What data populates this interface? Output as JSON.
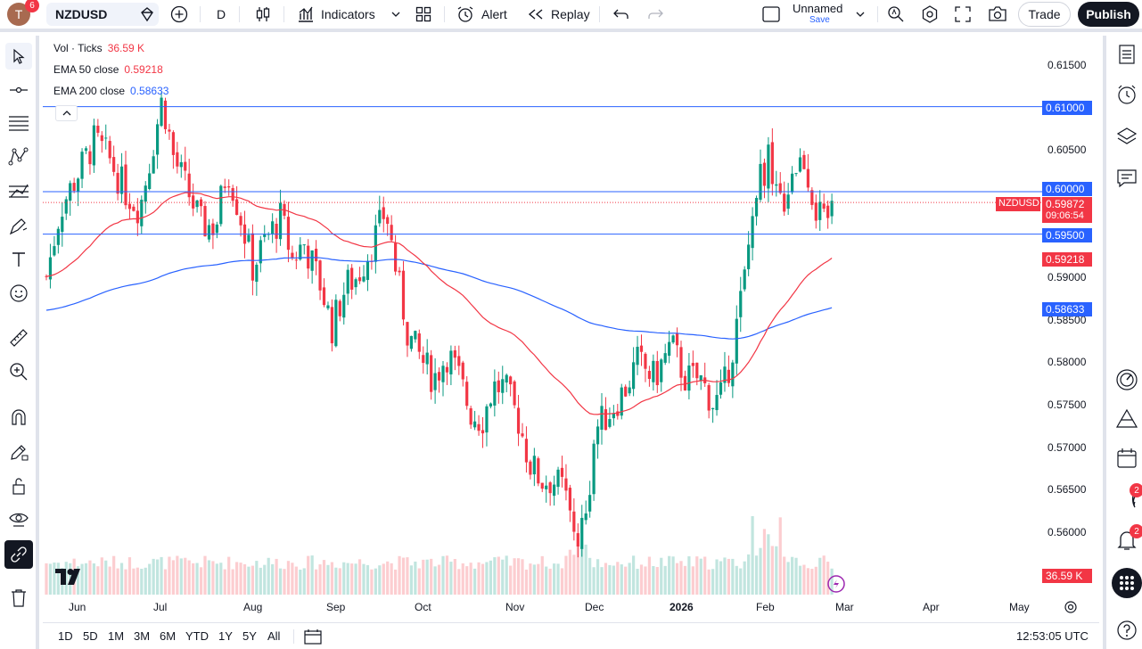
{
  "topbar": {
    "avatar_letter": "T",
    "notification_count": "6",
    "symbol": "NZDUSD",
    "interval": "D",
    "indicators_label": "Indicators",
    "alert_label": "Alert",
    "replay_label": "Replay",
    "layout_name": "Unnamed",
    "layout_save": "Save",
    "trade_label": "Trade",
    "publish_label": "Publish"
  },
  "legend": {
    "volume_label": "Vol · Ticks",
    "volume_value": "36.59 K",
    "ema50_label": "EMA 50 close",
    "ema50_value": "0.59218",
    "ema200_label": "EMA 200 close",
    "ema200_value": "0.58633"
  },
  "price_axis": [
    "0.61500",
    "0.60500",
    "0.59000",
    "0.58500",
    "0.58000",
    "0.57500",
    "0.57000",
    "0.56500",
    "0.56000"
  ],
  "price_labels": {
    "h1": "0.61000",
    "h2": "0.60000",
    "symbol": "NZDUSD",
    "last": "0.59872",
    "countdown": "09:06:54",
    "h3": "0.59500",
    "ema50": "0.59218",
    "ema200": "0.58633",
    "volume": "36.59 K"
  },
  "time_axis": [
    "Jun",
    "Jul",
    "Aug",
    "Sep",
    "Oct",
    "Nov",
    "Dec",
    "2026",
    "Feb",
    "Mar",
    "Apr",
    "May"
  ],
  "bottombar": {
    "ranges": [
      "1D",
      "5D",
      "1M",
      "3M",
      "6M",
      "YTD",
      "1Y",
      "5Y",
      "All"
    ],
    "clock": "12:53:05 UTC"
  },
  "rightbar": {
    "ideas_badge": "2",
    "alerts_badge": "2"
  },
  "colors": {
    "up": "#089981",
    "down": "#f23645",
    "ema50": "#f23645",
    "ema200": "#2962ff",
    "hline": "#2962ff"
  },
  "chart_data": {
    "type": "candlestick",
    "symbol": "NZDUSD",
    "ylim": [
      0.555,
      0.617
    ],
    "horizontal_lines": [
      0.61,
      0.6,
      0.595
    ],
    "last_price": 0.59872,
    "close_path": [
      [
        "2025-05-21",
        0.59
      ],
      [
        "2025-05-26",
        0.598
      ],
      [
        "2025-06-01",
        0.602
      ],
      [
        "2025-06-07",
        0.606
      ],
      [
        "2025-06-12",
        0.604
      ],
      [
        "2025-06-18",
        0.6
      ],
      [
        "2025-06-23",
        0.598
      ],
      [
        "2025-06-28",
        0.606
      ],
      [
        "2025-07-01",
        0.611
      ],
      [
        "2025-07-05",
        0.604
      ],
      [
        "2025-07-10",
        0.6
      ],
      [
        "2025-07-15",
        0.596
      ],
      [
        "2025-07-20",
        0.596
      ],
      [
        "2025-07-24",
        0.603
      ],
      [
        "2025-07-28",
        0.598
      ],
      [
        "2025-08-02",
        0.591
      ],
      [
        "2025-08-06",
        0.594
      ],
      [
        "2025-08-12",
        0.597
      ],
      [
        "2025-08-16",
        0.592
      ],
      [
        "2025-08-20",
        0.594
      ],
      [
        "2025-08-26",
        0.589
      ],
      [
        "2025-08-30",
        0.584
      ],
      [
        "2025-09-04",
        0.589
      ],
      [
        "2025-09-08",
        0.59
      ],
      [
        "2025-09-12",
        0.593
      ],
      [
        "2025-09-16",
        0.596
      ],
      [
        "2025-09-18",
        0.598
      ],
      [
        "2025-09-22",
        0.59
      ],
      [
        "2025-09-26",
        0.583
      ],
      [
        "2025-10-01",
        0.58
      ],
      [
        "2025-10-05",
        0.578
      ],
      [
        "2025-10-10",
        0.581
      ],
      [
        "2025-10-14",
        0.578
      ],
      [
        "2025-10-18",
        0.574
      ],
      [
        "2025-10-22",
        0.573
      ],
      [
        "2025-10-26",
        0.577
      ],
      [
        "2025-10-30",
        0.577
      ],
      [
        "2025-11-04",
        0.573
      ],
      [
        "2025-11-08",
        0.568
      ],
      [
        "2025-11-12",
        0.566
      ],
      [
        "2025-11-16",
        0.566
      ],
      [
        "2025-11-20",
        0.565
      ],
      [
        "2025-11-24",
        0.559
      ],
      [
        "2025-11-28",
        0.562
      ],
      [
        "2025-12-01",
        0.572
      ],
      [
        "2025-12-06",
        0.574
      ],
      [
        "2025-12-12",
        0.577
      ],
      [
        "2025-12-16",
        0.58
      ],
      [
        "2025-12-22",
        0.578
      ],
      [
        "2025-12-28",
        0.582
      ],
      [
        "2026-01-02",
        0.578
      ],
      [
        "2026-01-07",
        0.578
      ],
      [
        "2026-01-12",
        0.575
      ],
      [
        "2026-01-15",
        0.576
      ],
      [
        "2026-01-19",
        0.582
      ],
      [
        "2026-01-23",
        0.59
      ],
      [
        "2026-01-27",
        0.601
      ],
      [
        "2026-02-01",
        0.604
      ],
      [
        "2026-02-05",
        0.598
      ],
      [
        "2026-02-09",
        0.603
      ],
      [
        "2026-02-13",
        0.604
      ],
      [
        "2026-02-17",
        0.598
      ],
      [
        "2026-02-20",
        0.596
      ],
      [
        "2026-02-24",
        0.599
      ]
    ],
    "series": [
      {
        "name": "EMA 50 close",
        "last": 0.59218
      },
      {
        "name": "EMA 200 close",
        "last": 0.58633
      },
      {
        "name": "Vol · Ticks",
        "last": 36590
      }
    ]
  }
}
